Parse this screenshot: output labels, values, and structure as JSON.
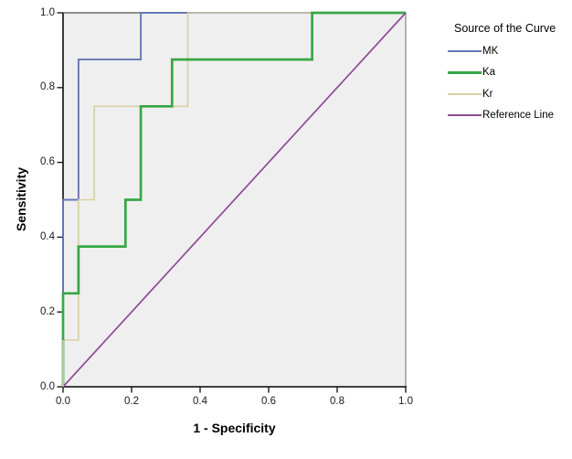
{
  "chart": {
    "x_axis_label": "1 - Specificity",
    "y_axis_label": "Sensitivity",
    "x_tick_labels": [
      "0.0",
      "0.2",
      "0.4",
      "0.6",
      "0.8",
      "1.0"
    ],
    "y_tick_labels": [
      "0.0",
      "0.2",
      "0.4",
      "0.6",
      "0.8",
      "1.0"
    ]
  },
  "legend": {
    "title": "Source of the Curve",
    "items": [
      {
        "label": "MK",
        "color": "#6577b8",
        "line_width": 2
      },
      {
        "label": "Ka",
        "color": "#35a845",
        "line_width": 3.5
      },
      {
        "label": "Kr",
        "color": "#d8d0a4",
        "line_width": 1.6
      },
      {
        "label": "Reference Line",
        "color": "#8d4b95",
        "line_width": 1.8
      }
    ]
  },
  "colors": {
    "plot_background": "#efefef",
    "frame_top": "#4f4f4f",
    "frame_right": "#8c8c8c",
    "axis": "#262626",
    "tick": "#1a1a1a"
  },
  "chart_data": {
    "type": "line",
    "subtype": "roc-step-curves",
    "title": "",
    "xlabel": "1 - Specificity",
    "ylabel": "Sensitivity",
    "xlim": [
      0.0,
      1.0
    ],
    "ylim": [
      0.0,
      1.0
    ],
    "x_ticks": [
      0.0,
      0.2,
      0.4,
      0.6,
      0.8,
      1.0
    ],
    "y_ticks": [
      0.0,
      0.2,
      0.4,
      0.6,
      0.8,
      1.0
    ],
    "grid": false,
    "legend_title": "Source of the Curve",
    "legend_position": "right",
    "series": [
      {
        "name": "MK",
        "color": "#6577b8",
        "line_width": 1.9,
        "points": [
          [
            0,
            0
          ],
          [
            0,
            0.5
          ],
          [
            0.045,
            0.5
          ],
          [
            0.045,
            0.875
          ],
          [
            0.227,
            0.875
          ],
          [
            0.227,
            1
          ],
          [
            1,
            1
          ]
        ]
      },
      {
        "name": "Ka",
        "color": "#35a845",
        "line_width": 2.7,
        "points": [
          [
            0,
            0
          ],
          [
            0,
            0.25
          ],
          [
            0.045,
            0.25
          ],
          [
            0.045,
            0.375
          ],
          [
            0.182,
            0.375
          ],
          [
            0.182,
            0.5
          ],
          [
            0.227,
            0.5
          ],
          [
            0.227,
            0.75
          ],
          [
            0.318,
            0.75
          ],
          [
            0.318,
            0.875
          ],
          [
            0.727,
            0.875
          ],
          [
            0.727,
            1
          ],
          [
            1,
            1
          ]
        ]
      },
      {
        "name": "Kr",
        "color": "#d8d0a4",
        "line_width": 1.6,
        "points": [
          [
            0,
            0
          ],
          [
            0,
            0.125
          ],
          [
            0.045,
            0.125
          ],
          [
            0.045,
            0.5
          ],
          [
            0.091,
            0.5
          ],
          [
            0.091,
            0.75
          ],
          [
            0.364,
            0.75
          ],
          [
            0.364,
            1
          ],
          [
            1,
            1
          ]
        ]
      },
      {
        "name": "Reference Line",
        "color": "#8d4b95",
        "line_width": 1.7,
        "points": [
          [
            0,
            0
          ],
          [
            1,
            1
          ]
        ]
      }
    ],
    "draw_order": [
      "MK",
      "Kr",
      "Ka",
      "Reference Line"
    ],
    "overlay_segments": [
      {
        "series": "Kr",
        "color": "#d8d0a4",
        "line_width": 1.6,
        "points": [
          [
            0,
            0
          ],
          [
            0,
            0.125
          ]
        ]
      }
    ]
  }
}
